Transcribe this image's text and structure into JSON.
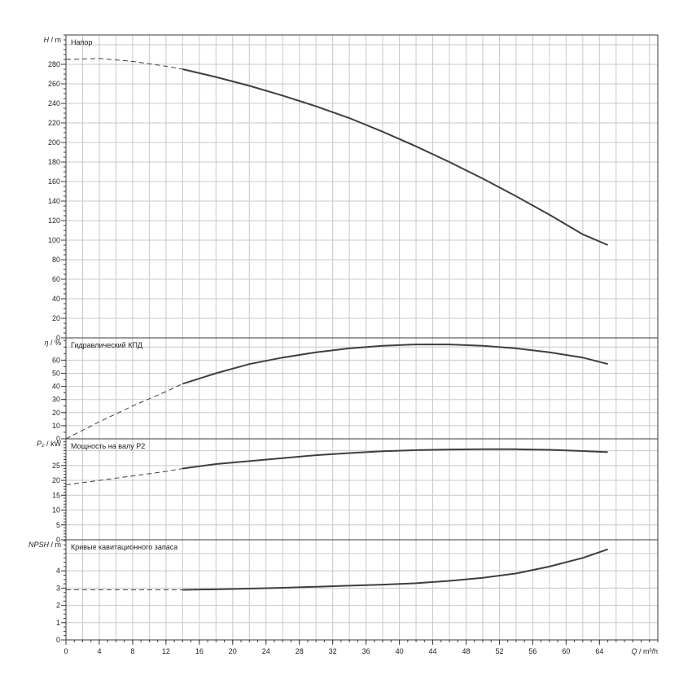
{
  "chart_data": {
    "type": "line",
    "x_axis": {
      "label_italic": "Q",
      "label_unit": " / m³/h",
      "range": [
        0,
        71
      ],
      "ticks": [
        0,
        4,
        8,
        12,
        16,
        20,
        24,
        28,
        32,
        36,
        40,
        44,
        48,
        52,
        56,
        60,
        64
      ],
      "grid_step": 2
    },
    "panels": [
      {
        "id": "head",
        "title": "Напор",
        "ylabel_italic": "H",
        "ylabel_unit": " / m",
        "ylim": [
          0,
          310
        ],
        "ticks": [
          0,
          20,
          40,
          60,
          80,
          100,
          120,
          140,
          160,
          180,
          200,
          220,
          240,
          260,
          280
        ],
        "grid_step": 20,
        "minor_step": 5,
        "extension": [
          [
            0,
            285
          ],
          [
            4,
            286
          ],
          [
            8,
            283
          ],
          [
            12,
            278
          ],
          [
            14,
            275
          ]
        ],
        "series": [
          [
            14,
            275
          ],
          [
            18,
            267
          ],
          [
            22,
            258
          ],
          [
            26,
            248
          ],
          [
            30,
            237
          ],
          [
            34,
            225
          ],
          [
            38,
            211
          ],
          [
            42,
            196
          ],
          [
            46,
            180
          ],
          [
            50,
            163
          ],
          [
            54,
            145
          ],
          [
            58,
            126
          ],
          [
            62,
            106
          ],
          [
            65,
            95
          ]
        ]
      },
      {
        "id": "efficiency",
        "title": "Гидравлический КПД",
        "ylabel_italic": "η",
        "ylabel_unit": " / %",
        "ylim": [
          0,
          77
        ],
        "ticks": [
          0,
          10,
          20,
          30,
          40,
          50,
          60
        ],
        "grid_step": 10,
        "minor_step": 5,
        "extension": [
          [
            0,
            0
          ],
          [
            4,
            13
          ],
          [
            8,
            25
          ],
          [
            12,
            36
          ],
          [
            14,
            42
          ]
        ],
        "series": [
          [
            14,
            42
          ],
          [
            18,
            50
          ],
          [
            22,
            57
          ],
          [
            26,
            62
          ],
          [
            30,
            66
          ],
          [
            34,
            69
          ],
          [
            38,
            71
          ],
          [
            42,
            72
          ],
          [
            46,
            72
          ],
          [
            50,
            71
          ],
          [
            54,
            69
          ],
          [
            58,
            66
          ],
          [
            62,
            62
          ],
          [
            65,
            57
          ]
        ]
      },
      {
        "id": "power",
        "title": "Мощность на валу P2",
        "ylabel_italic": "P₂",
        "ylabel_unit": " / kW",
        "ylim": [
          0,
          34
        ],
        "ticks": [
          0,
          5,
          10,
          15,
          20,
          25
        ],
        "grid_step": 5,
        "minor_step": 1,
        "extension": [
          [
            0,
            18.5
          ],
          [
            4,
            20
          ],
          [
            8,
            21.5
          ],
          [
            12,
            23
          ],
          [
            14,
            24
          ]
        ],
        "series": [
          [
            14,
            24
          ],
          [
            18,
            25.5
          ],
          [
            22,
            26.5
          ],
          [
            26,
            27.5
          ],
          [
            30,
            28.5
          ],
          [
            34,
            29.2
          ],
          [
            38,
            29.8
          ],
          [
            42,
            30.2
          ],
          [
            46,
            30.4
          ],
          [
            50,
            30.5
          ],
          [
            54,
            30.5
          ],
          [
            58,
            30.3
          ],
          [
            62,
            29.9
          ],
          [
            65,
            29.5
          ]
        ]
      },
      {
        "id": "npsh",
        "title": "Кривые кавитационного запаса",
        "ylabel_italic": "NPSH",
        "ylabel_unit": " / m",
        "ylim": [
          0,
          5.8
        ],
        "ticks": [
          0,
          1,
          2,
          3,
          4
        ],
        "grid_step": 1,
        "minor_step": 0.25,
        "extension": [
          [
            0,
            2.9
          ],
          [
            4,
            2.9
          ],
          [
            8,
            2.9
          ],
          [
            12,
            2.9
          ],
          [
            14,
            2.9
          ]
        ],
        "series": [
          [
            14,
            2.9
          ],
          [
            18,
            2.93
          ],
          [
            22,
            2.97
          ],
          [
            26,
            3.02
          ],
          [
            30,
            3.08
          ],
          [
            34,
            3.14
          ],
          [
            38,
            3.2
          ],
          [
            42,
            3.28
          ],
          [
            46,
            3.42
          ],
          [
            50,
            3.6
          ],
          [
            54,
            3.85
          ],
          [
            58,
            4.25
          ],
          [
            62,
            4.75
          ],
          [
            65,
            5.25
          ]
        ]
      }
    ]
  }
}
